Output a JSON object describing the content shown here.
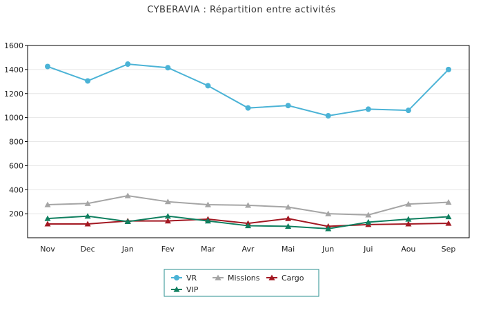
{
  "chart_data": {
    "type": "line",
    "title": "CYBERAVIA : Répartition entre activités",
    "xlabel": "",
    "ylabel": "",
    "categories": [
      "Nov",
      "Dec",
      "Jan",
      "Fev",
      "Mar",
      "Avr",
      "Mai",
      "Jun",
      "Jui",
      "Aou",
      "Sep"
    ],
    "ylim": [
      0,
      1600
    ],
    "yticks": [
      200,
      400,
      600,
      800,
      1000,
      1200,
      1400,
      1600
    ],
    "grid": true,
    "legend_position": "bottom-center",
    "series": [
      {
        "name": "VR",
        "color": "#4bb3d6",
        "marker": "circle",
        "values": [
          1425,
          1305,
          1445,
          1415,
          1265,
          1080,
          1100,
          1015,
          1070,
          1060,
          1400
        ]
      },
      {
        "name": "Missions",
        "color": "#a5a5a5",
        "marker": "triangle",
        "values": [
          275,
          285,
          350,
          300,
          275,
          270,
          255,
          200,
          190,
          280,
          295
        ]
      },
      {
        "name": "Cargo",
        "color": "#a31822",
        "marker": "triangle",
        "values": [
          115,
          115,
          140,
          140,
          155,
          120,
          160,
          95,
          110,
          115,
          120
        ]
      },
      {
        "name": "VIP",
        "color": "#0f7f5f",
        "marker": "triangle",
        "values": [
          160,
          180,
          135,
          180,
          140,
          100,
          95,
          75,
          130,
          155,
          175
        ]
      }
    ]
  }
}
